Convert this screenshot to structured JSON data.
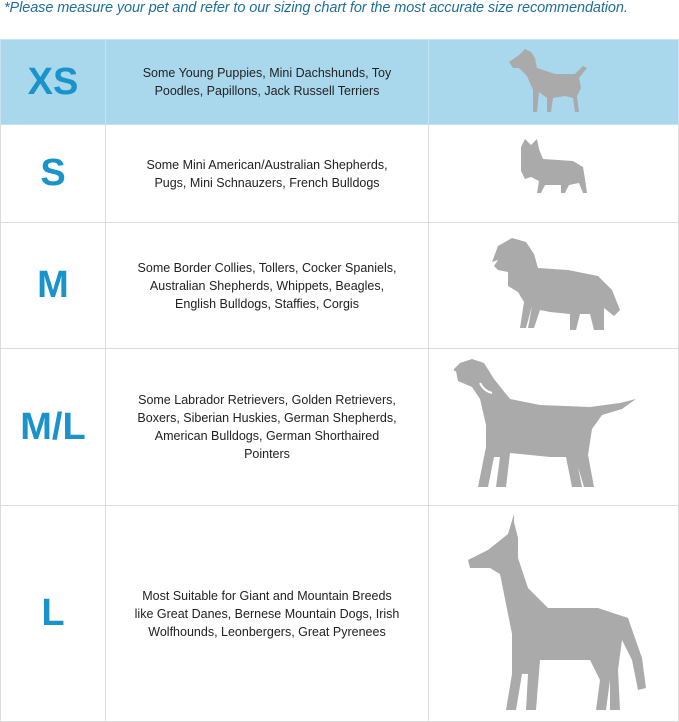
{
  "note": "*Please measure your pet and refer to our sizing chart for the most accurate size recommendation.",
  "colors": {
    "note": "#1f6f9c",
    "size_label": "#1a93cb",
    "highlight_row": "#a9d8ec",
    "silhouette": "#aaaaaa",
    "grid": "#dcdcdc"
  },
  "rows": [
    {
      "size": "XS",
      "description": "Some Young Puppies, Mini Dachshunds, Toy Poodles, Papillons, Jack Russell Terriers",
      "icon": "small-dog-silhouette-icon",
      "highlighted": true
    },
    {
      "size": "S",
      "description": "Some Mini American/Australian Shepherds, Pugs, Mini Schnauzers, French Bulldogs",
      "icon": "french-bulldog-silhouette-icon",
      "highlighted": false
    },
    {
      "size": "M",
      "description": "Some Border Collies, Tollers, Cocker Spaniels, Australian Shepherds, Whippets, Beagles, English Bulldogs, Staffies, Corgis",
      "icon": "spaniel-silhouette-icon",
      "highlighted": false
    },
    {
      "size": "M/L",
      "description": "Some Labrador Retrievers, Golden Retrievers, Boxers, Siberian Huskies, German Shepherds, American Bulldogs, German Shorthaired Pointers",
      "icon": "labrador-silhouette-icon",
      "highlighted": false
    },
    {
      "size": "L",
      "description": "Most Suitable for Giant and Mountain Breeds like Great Danes, Bernese Mountain Dogs, Irish Wolfhounds, Leonbergers, Great Pyrenees",
      "icon": "great-dane-silhouette-icon",
      "highlighted": false
    }
  ]
}
